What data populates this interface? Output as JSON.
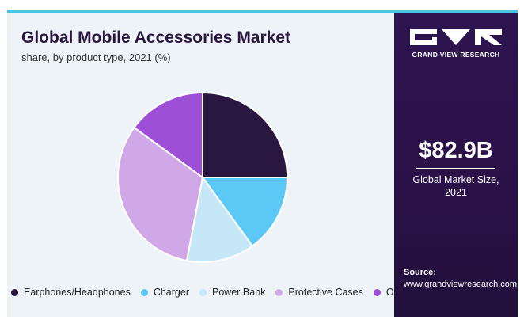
{
  "header": {
    "title": "Global Mobile Accessories Market",
    "subtitle": "share, by product type, 2021 (%)"
  },
  "chart_data": {
    "type": "pie",
    "categories": [
      "Earphones/Headphones",
      "Charger",
      "Power Bank",
      "Protective Cases",
      "Others"
    ],
    "values": [
      25,
      15,
      13,
      32,
      15
    ],
    "colors": [
      "#2a1740",
      "#5bc8f5",
      "#c5e7f8",
      "#d0a8e8",
      "#9d4fd8"
    ],
    "legend_position": "bottom",
    "start": "top",
    "direction": "clockwise"
  },
  "panel": {
    "brand": "GRAND VIEW RESEARCH",
    "market_size": "$82.9B",
    "market_size_label_line1": "Global Market Size,",
    "market_size_label_line2": "2021",
    "source_title": "Source:",
    "source_url": "www.grandviewresearch.com"
  },
  "colors": {
    "accent_bar": "#46c7e8",
    "panel_bg": "#2e1450",
    "card_bg": "#eef3f7"
  }
}
